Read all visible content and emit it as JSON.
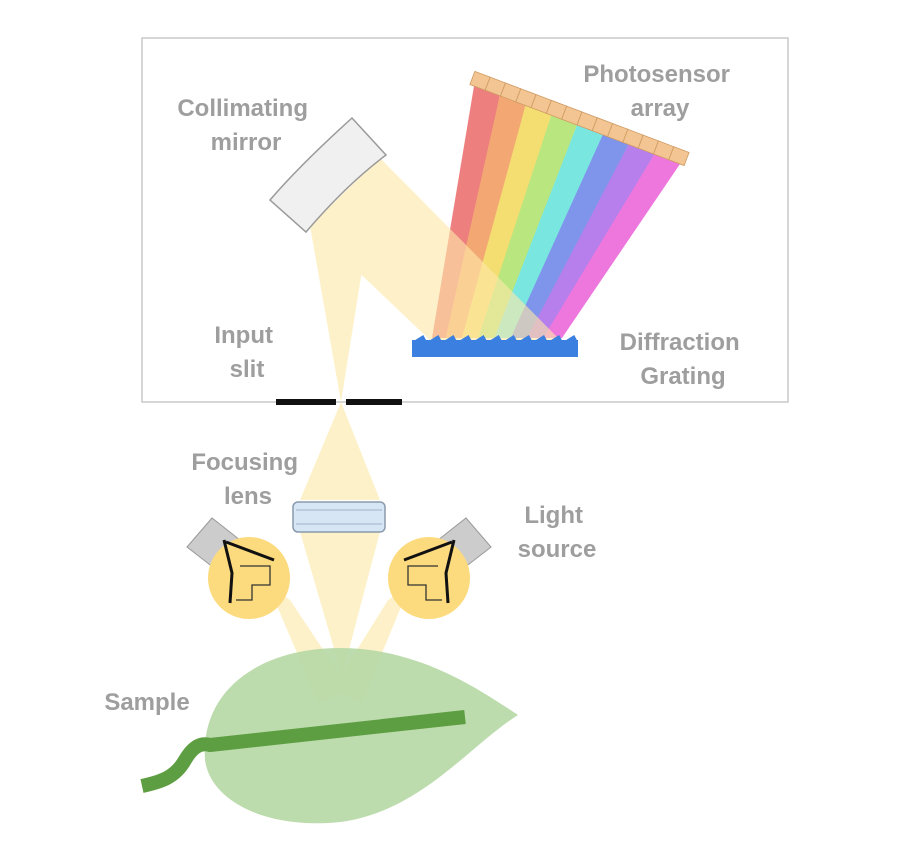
{
  "labels": {
    "collimating_mirror": [
      "Collimating",
      "mirror"
    ],
    "photosensor_array": [
      "Photosensor",
      "array"
    ],
    "input_slit": [
      "Input",
      "slit"
    ],
    "diffraction_grating": [
      "Diffraction",
      "Grating"
    ],
    "focusing_lens": [
      "Focusing",
      "lens"
    ],
    "light_source": [
      "Light",
      "source"
    ],
    "sample": "Sample"
  },
  "colors": {
    "frame": "#c8c8c8",
    "label_text": "#9e9e9e",
    "light_beam": "#fde9a9",
    "grating": "#3b7fe0",
    "sensor": "#f2c592",
    "lamp": "#fcdb7e",
    "leaf": "#b6d8a4",
    "leaf_vein": "#5e9e42",
    "lens": "#d6e6f5",
    "mirror": "#f0f0f0",
    "slit": "#111111"
  },
  "spectrum_colors": [
    "#e85c5c",
    "#f0904e",
    "#f2d64a",
    "#a6e05a",
    "#56e0d8",
    "#5c78e6",
    "#a25ce6",
    "#ea52d6"
  ]
}
